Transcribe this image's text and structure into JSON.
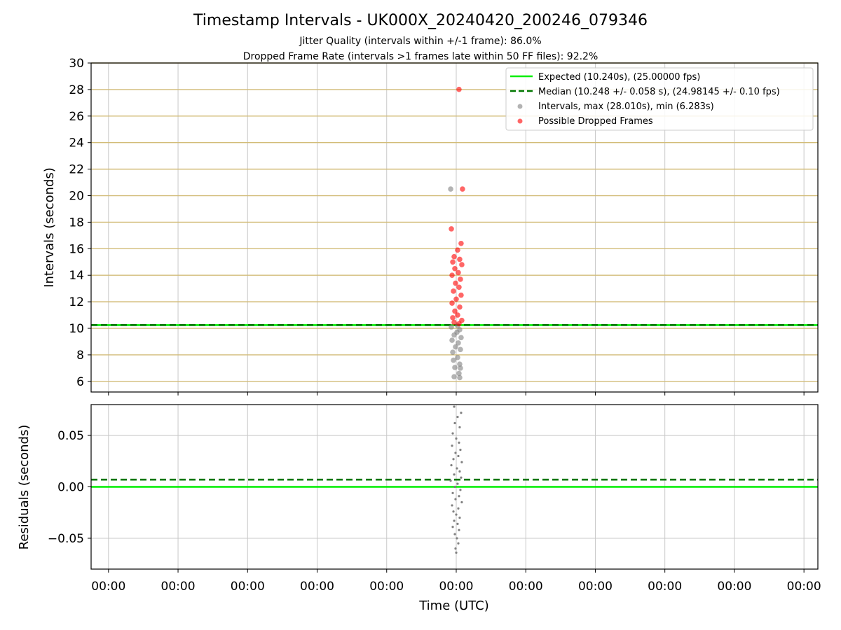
{
  "chart_data": [
    {
      "id": "intervals",
      "type": "scatter",
      "title": "Timestamp Intervals - UK000X_20240420_200246_079346",
      "subtitle_lines": [
        "Jitter Quality (intervals within +/-1 frame): 86.0%",
        "Dropped Frame Rate (intervals >1 frames late within 50 FF files): 92.2%"
      ],
      "xlabel": "",
      "ylabel": "Intervals (seconds)",
      "ylim": [
        5.2,
        30
      ],
      "yticks": [
        6,
        8,
        10,
        12,
        14,
        16,
        18,
        20,
        22,
        24,
        26,
        28,
        30
      ],
      "xticks": [
        -5,
        -4,
        -3,
        -2,
        -1,
        0,
        1,
        2,
        3,
        4,
        5
      ],
      "xlim": [
        -5.25,
        5.2
      ],
      "grid": true,
      "legend_position": "upper right",
      "hlines": [
        {
          "name": "Expected (10.240s), (25.00000 fps)",
          "y": 10.24,
          "color": "#00ee00",
          "style": "solid"
        },
        {
          "name": "Median (10.248 +/- 0.058 s), (24.98145 +/- 0.10 fps)",
          "y": 10.248,
          "color": "#007700",
          "style": "dashed"
        }
      ],
      "series": [
        {
          "name": "Intervals, max (28.010s), min (6.283s)",
          "color": "#808080",
          "points": [
            {
              "x": -0.08,
              "y": 20.5
            },
            {
              "x": 0.05,
              "y": 6.283
            },
            {
              "x": -0.03,
              "y": 6.35
            },
            {
              "x": 0.04,
              "y": 6.6
            },
            {
              "x": 0.06,
              "y": 7.0
            },
            {
              "x": -0.02,
              "y": 7.05
            },
            {
              "x": 0.05,
              "y": 7.3
            },
            {
              "x": -0.04,
              "y": 7.6
            },
            {
              "x": 0.02,
              "y": 7.8
            },
            {
              "x": -0.05,
              "y": 8.2
            },
            {
              "x": 0.06,
              "y": 8.4
            },
            {
              "x": -0.01,
              "y": 8.6
            },
            {
              "x": 0.03,
              "y": 8.9
            },
            {
              "x": -0.06,
              "y": 9.1
            },
            {
              "x": 0.07,
              "y": 9.3
            },
            {
              "x": -0.03,
              "y": 9.5
            },
            {
              "x": 0.01,
              "y": 9.7
            },
            {
              "x": 0.05,
              "y": 9.9
            },
            {
              "x": -0.07,
              "y": 10.1
            },
            {
              "x": 0.02,
              "y": 10.2
            }
          ]
        },
        {
          "name": "Possible Dropped Frames",
          "color": "#ff0000",
          "points": [
            {
              "x": 0.04,
              "y": 28.01
            },
            {
              "x": 0.09,
              "y": 20.5
            },
            {
              "x": -0.07,
              "y": 17.5
            },
            {
              "x": 0.07,
              "y": 16.4
            },
            {
              "x": 0.02,
              "y": 15.9
            },
            {
              "x": -0.03,
              "y": 15.4
            },
            {
              "x": 0.05,
              "y": 15.2
            },
            {
              "x": -0.05,
              "y": 15.0
            },
            {
              "x": 0.08,
              "y": 14.8
            },
            {
              "x": -0.02,
              "y": 14.5
            },
            {
              "x": 0.03,
              "y": 14.2
            },
            {
              "x": -0.06,
              "y": 14.0
            },
            {
              "x": 0.06,
              "y": 13.7
            },
            {
              "x": -0.01,
              "y": 13.4
            },
            {
              "x": 0.04,
              "y": 13.1
            },
            {
              "x": -0.04,
              "y": 12.8
            },
            {
              "x": 0.07,
              "y": 12.5
            },
            {
              "x": 0.0,
              "y": 12.2
            },
            {
              "x": -0.06,
              "y": 11.9
            },
            {
              "x": 0.05,
              "y": 11.6
            },
            {
              "x": -0.02,
              "y": 11.3
            },
            {
              "x": 0.02,
              "y": 11.0
            },
            {
              "x": -0.05,
              "y": 10.8
            },
            {
              "x": 0.08,
              "y": 10.6
            },
            {
              "x": -0.03,
              "y": 10.45
            },
            {
              "x": 0.04,
              "y": 10.35
            }
          ]
        }
      ]
    },
    {
      "id": "residuals",
      "type": "scatter",
      "xlabel": "Time (UTC)",
      "ylabel": "Residuals (seconds)",
      "ylim": [
        -0.08,
        0.08
      ],
      "yticks": [
        -0.05,
        0.0,
        0.05
      ],
      "ytick_labels": [
        "−0.05",
        "0.00",
        "0.05"
      ],
      "xticks": [
        -5,
        -4,
        -3,
        -2,
        -1,
        0,
        1,
        2,
        3,
        4,
        5
      ],
      "xtick_labels": [
        "00:00",
        "00:00",
        "00:00",
        "00:00",
        "00:00",
        "00:00",
        "00:00",
        "00:00",
        "00:00",
        "00:00",
        "00:00"
      ],
      "xlim": [
        -5.25,
        5.2
      ],
      "grid": true,
      "hlines": [
        {
          "name": "Expected",
          "y": 0.0,
          "color": "#00ee00",
          "style": "solid"
        },
        {
          "name": "Median",
          "y": 0.007,
          "color": "#007700",
          "style": "dashed"
        }
      ],
      "series": [
        {
          "name": "",
          "color": "#808080",
          "points": [
            {
              "x": -0.03,
              "y": 0.078
            },
            {
              "x": 0.07,
              "y": 0.072
            },
            {
              "x": 0.02,
              "y": 0.068
            },
            {
              "x": -0.02,
              "y": 0.062
            },
            {
              "x": 0.05,
              "y": 0.058
            },
            {
              "x": -0.05,
              "y": 0.052
            },
            {
              "x": 0.0,
              "y": 0.047
            },
            {
              "x": 0.04,
              "y": 0.043
            },
            {
              "x": -0.06,
              "y": 0.04
            },
            {
              "x": 0.06,
              "y": 0.036
            },
            {
              "x": -0.01,
              "y": 0.033
            },
            {
              "x": 0.03,
              "y": 0.03
            },
            {
              "x": -0.04,
              "y": 0.027
            },
            {
              "x": 0.08,
              "y": 0.024
            },
            {
              "x": -0.07,
              "y": 0.021
            },
            {
              "x": 0.01,
              "y": 0.018
            },
            {
              "x": 0.05,
              "y": 0.015
            },
            {
              "x": -0.03,
              "y": 0.012
            },
            {
              "x": 0.07,
              "y": 0.009
            },
            {
              "x": -0.08,
              "y": 0.006
            },
            {
              "x": 0.02,
              "y": 0.003
            },
            {
              "x": -0.02,
              "y": 0.0
            },
            {
              "x": 0.06,
              "y": -0.003
            },
            {
              "x": -0.05,
              "y": -0.006
            },
            {
              "x": 0.04,
              "y": -0.009
            },
            {
              "x": -0.01,
              "y": -0.012
            },
            {
              "x": 0.08,
              "y": -0.015
            },
            {
              "x": -0.06,
              "y": -0.018
            },
            {
              "x": 0.03,
              "y": -0.021
            },
            {
              "x": -0.04,
              "y": -0.024
            },
            {
              "x": 0.0,
              "y": -0.027
            },
            {
              "x": 0.05,
              "y": -0.03
            },
            {
              "x": -0.03,
              "y": -0.033
            },
            {
              "x": 0.02,
              "y": -0.036
            },
            {
              "x": -0.05,
              "y": -0.039
            },
            {
              "x": 0.04,
              "y": -0.042
            },
            {
              "x": -0.02,
              "y": -0.046
            },
            {
              "x": 0.01,
              "y": -0.05
            },
            {
              "x": 0.03,
              "y": -0.055
            },
            {
              "x": -0.01,
              "y": -0.06
            },
            {
              "x": 0.0,
              "y": -0.064
            }
          ]
        }
      ]
    }
  ],
  "legend": {
    "items": [
      {
        "label": "Expected (10.240s), (25.00000 fps)",
        "kind": "line-solid",
        "color": "#00ee00"
      },
      {
        "label": "Median (10.248 +/- 0.058 s), (24.98145 +/- 0.10 fps)",
        "kind": "line-dashed",
        "color": "#007700"
      },
      {
        "label": "Intervals, max (28.010s), min (6.283s)",
        "kind": "dot",
        "color": "#808080"
      },
      {
        "label": "Possible Dropped Frames",
        "kind": "dot",
        "color": "#ff0000"
      }
    ]
  },
  "colors": {
    "expected": "#00ee00",
    "median": "#007700",
    "intervals": "#808080",
    "dropped": "#ff0000",
    "upper_grid": "#d2bc78",
    "grid": "#c8c8c8"
  }
}
